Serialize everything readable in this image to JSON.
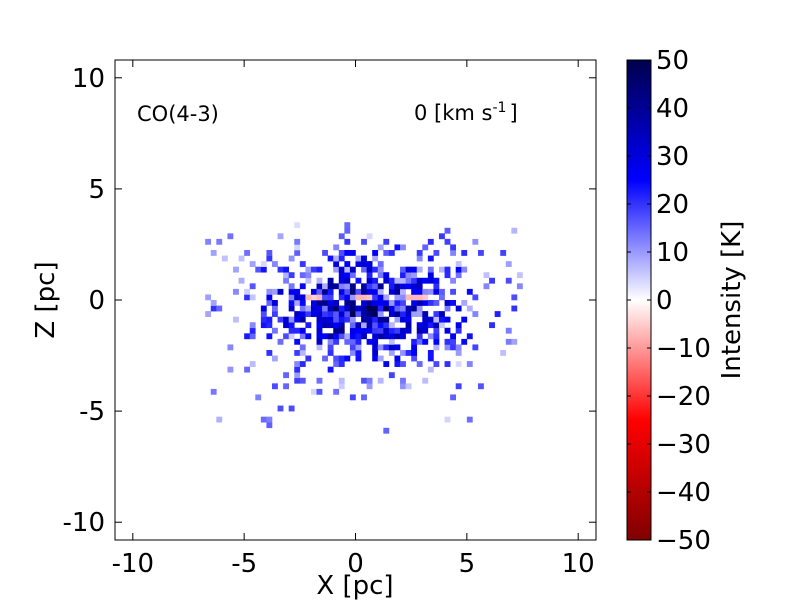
{
  "chart_data": {
    "type": "heatmap",
    "title": "",
    "xlabel": "X [pc]",
    "ylabel": "Z [pc]",
    "xlim": [
      -10.8,
      10.8
    ],
    "ylim": [
      -10.8,
      10.8
    ],
    "xticks": [
      -10,
      -5,
      0,
      5,
      10
    ],
    "yticks": [
      -10,
      -5,
      0,
      5,
      10
    ],
    "xticklabels": [
      "-10",
      "-5",
      "0",
      "5",
      "10"
    ],
    "yticklabels": [
      "-10",
      "-5",
      "0",
      "5",
      "10"
    ],
    "annotations": {
      "species": "CO(4-3)",
      "velocity_prefix": "0 [km s",
      "velocity_exp": "-1",
      "velocity_suffix": "]"
    },
    "colorbar": {
      "label": "Intensity [K]",
      "range": [
        -50,
        50
      ],
      "ticks": [
        50,
        40,
        30,
        20,
        10,
        0,
        -10,
        -20,
        -30,
        -40,
        -50
      ],
      "ticklabels": [
        "50",
        "40",
        "30",
        "20",
        "10",
        "0",
        "−10",
        "−20",
        "−30",
        "−40",
        "−50"
      ],
      "colormap": "seismic",
      "colors": [
        "#800000",
        "#ff0000",
        "#ffffff",
        "#0000ff",
        "#00004d"
      ]
    },
    "grid": false,
    "emission": {
      "center": [
        0.3,
        -0.5
      ],
      "extent_x": [
        -7,
        7.5
      ],
      "extent_z": [
        -6,
        3.5
      ],
      "peak_intensity": 50,
      "negative_spots_x": [
        -2,
        0.3,
        2.6
      ],
      "negative_spots_z": [
        0,
        0,
        0
      ]
    }
  }
}
